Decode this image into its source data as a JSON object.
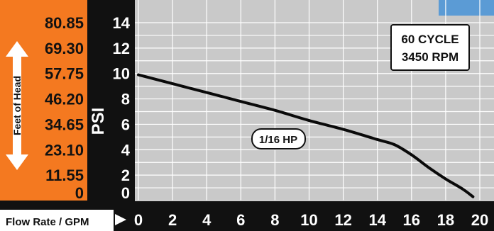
{
  "colors": {
    "orange_panel": "#F47920",
    "black_panel": "#111111",
    "plot_bg": "#C9C9C9",
    "grid": "#FFFFFF",
    "curve": "#0A0A0A",
    "label_text": "#FFFFFF",
    "box_bg": "#FFFFFF",
    "corner_accent": "#5B9BD5"
  },
  "left_axis": {
    "label": "Feet of Head",
    "ticks": [
      "80.85",
      "69.30",
      "57.75",
      "46.20",
      "34.65",
      "23.10",
      "11.55",
      "0"
    ]
  },
  "psi_axis": {
    "label": "PSI",
    "ticks": [
      "14",
      "12",
      "10",
      "8",
      "6",
      "4",
      "2",
      "0"
    ]
  },
  "x_axis": {
    "label": "Flow Rate / GPM",
    "ticks": [
      "0",
      "2",
      "4",
      "6",
      "8",
      "10",
      "12",
      "14",
      "16",
      "18",
      "20"
    ]
  },
  "annotations": {
    "speed_line1": "60 CYCLE",
    "speed_line2": "3450 RPM",
    "hp": "1/16 HP"
  },
  "chart_data": {
    "type": "line",
    "xlabel": "Flow Rate / GPM",
    "ylabel": "PSI",
    "xlim": [
      0,
      20
    ],
    "ylim": [
      0,
      14
    ],
    "grid": true,
    "series": [
      {
        "name": "1/16 HP",
        "x": [
          0,
          2,
          4,
          6,
          8,
          10,
          12,
          14,
          15,
          16,
          17,
          18,
          19,
          19.6
        ],
        "y": [
          9.9,
          9.2,
          8.5,
          7.8,
          7.1,
          6.3,
          5.6,
          4.8,
          4.4,
          3.6,
          2.6,
          1.7,
          0.9,
          0.3
        ]
      }
    ]
  }
}
